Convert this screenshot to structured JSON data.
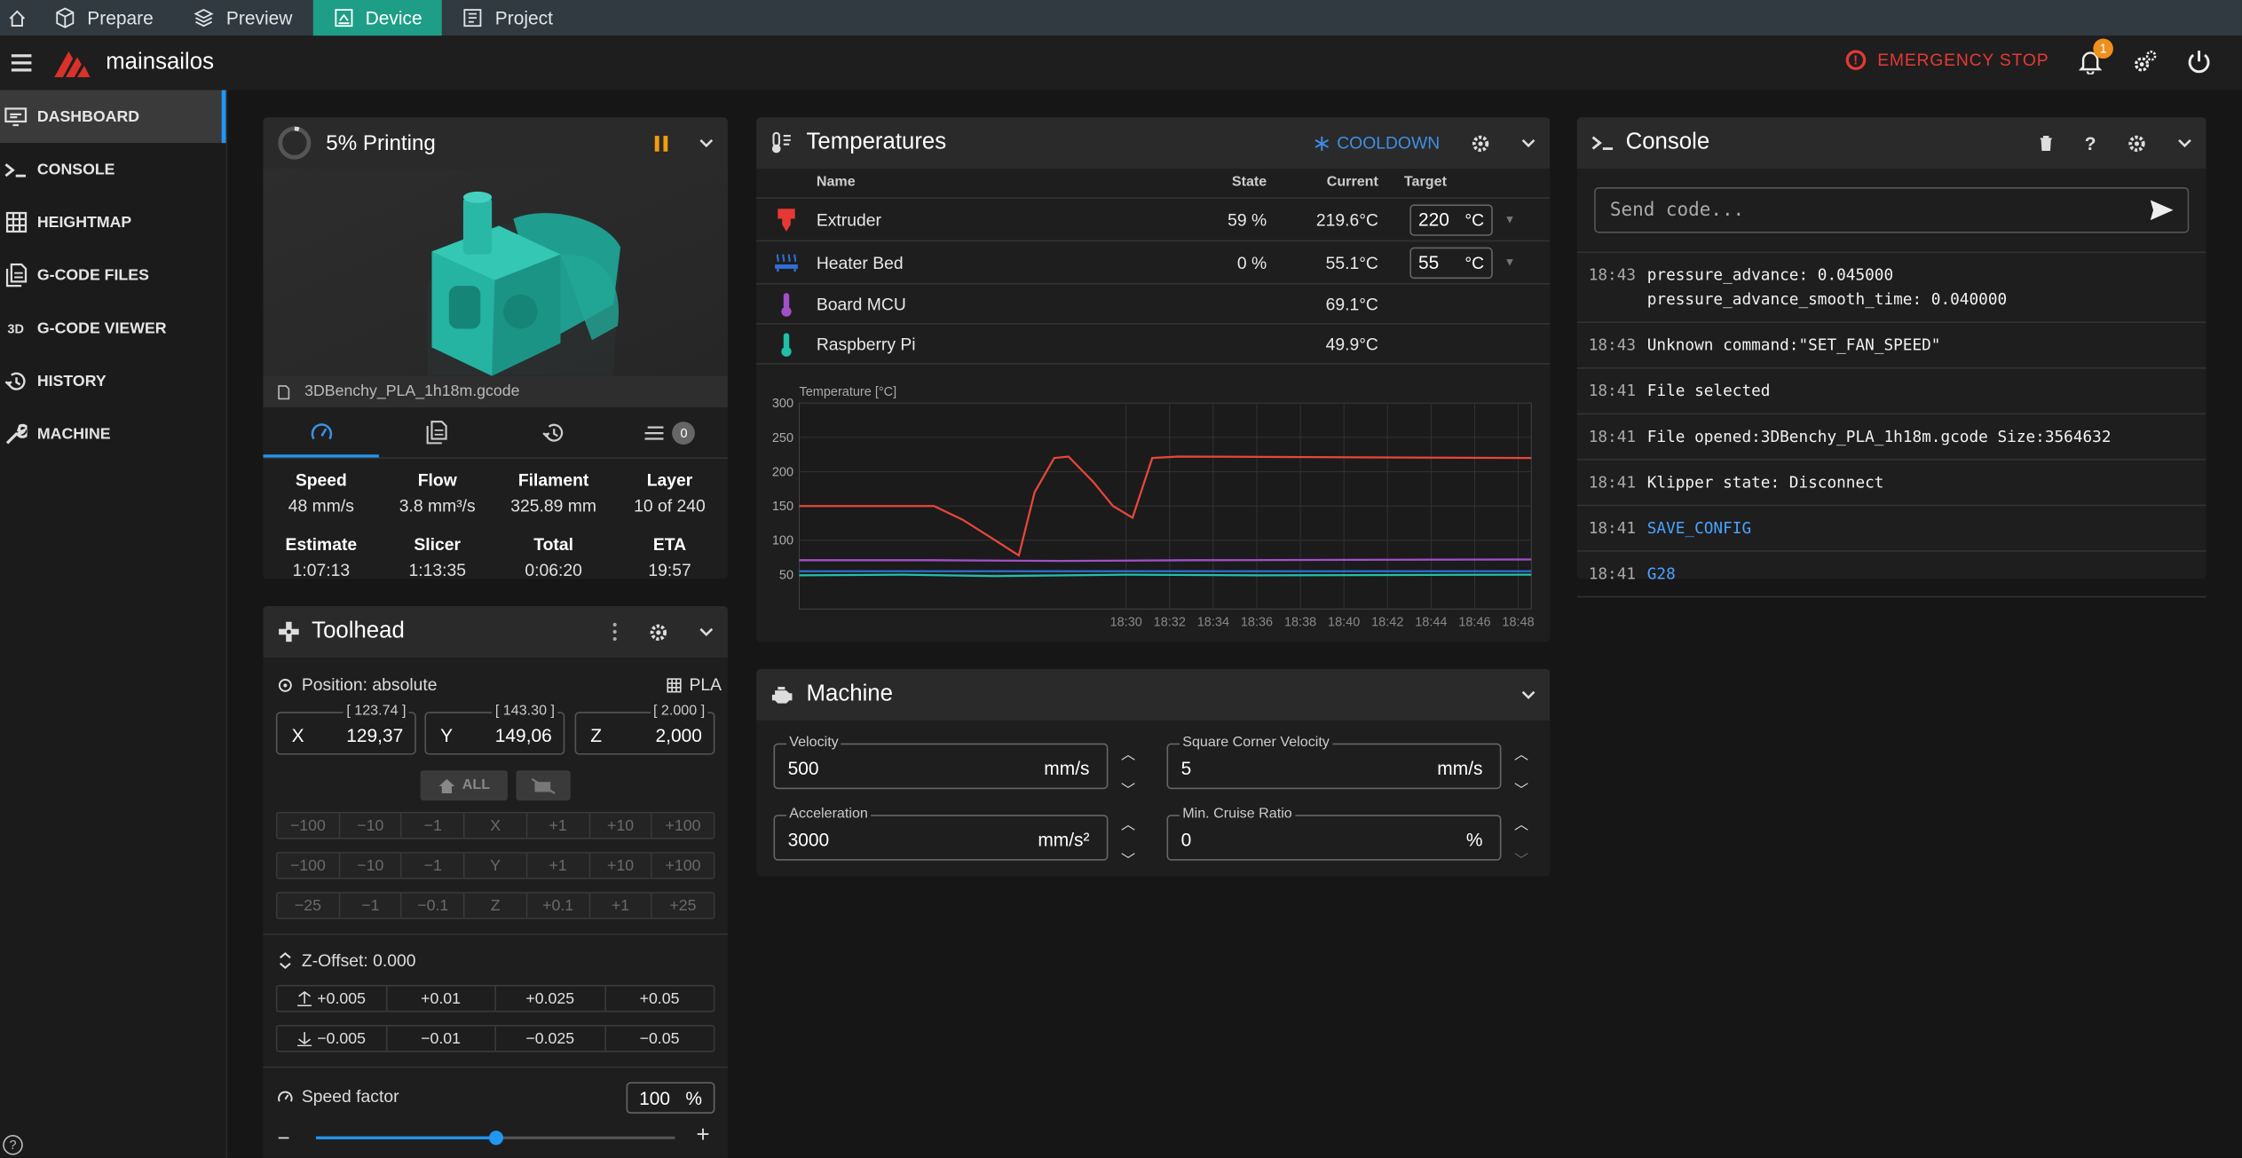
{
  "topbar": {
    "tabs": [
      {
        "label": "Prepare",
        "icon": "cube-icon"
      },
      {
        "label": "Preview",
        "icon": "layers-icon"
      },
      {
        "label": "Device",
        "icon": "device-icon",
        "active": true
      },
      {
        "label": "Project",
        "icon": "project-icon"
      }
    ]
  },
  "appbar": {
    "brand": "mainsailos",
    "emergency_stop": "EMERGENCY STOP",
    "notification_count": "1"
  },
  "sidebar": {
    "items": [
      {
        "label": "DASHBOARD",
        "active": true
      },
      {
        "label": "CONSOLE"
      },
      {
        "label": "HEIGHTMAP"
      },
      {
        "label": "G-CODE FILES"
      },
      {
        "label": "G-CODE VIEWER"
      },
      {
        "label": "HISTORY"
      },
      {
        "label": "MACHINE"
      }
    ],
    "help": "?"
  },
  "status": {
    "title": "5% Printing",
    "progress": 0.05,
    "filename": "3DBenchy_PLA_1h18m.gcode",
    "queue_count": "0",
    "stats_row1": [
      {
        "k": "Speed",
        "v": "48 mm/s"
      },
      {
        "k": "Flow",
        "v": "3.8 mm³/s"
      },
      {
        "k": "Filament",
        "v": "325.89 mm"
      },
      {
        "k": "Layer",
        "v": "10 of 240"
      }
    ],
    "stats_row2": [
      {
        "k": "Estimate",
        "v": "1:07:13"
      },
      {
        "k": "Slicer",
        "v": "1:13:35"
      },
      {
        "k": "Total",
        "v": "0:06:20"
      },
      {
        "k": "ETA",
        "v": "19:57"
      }
    ]
  },
  "toolhead": {
    "title": "Toolhead",
    "position_mode": "Position: absolute",
    "filament": "PLA",
    "x": {
      "label": "X",
      "value": "129,37",
      "target": "[ 123.74 ]"
    },
    "y": {
      "label": "Y",
      "value": "149,06",
      "target": "[ 143.30 ]"
    },
    "z": {
      "label": "Z",
      "value": "2,000",
      "target": "[ 2.000 ]"
    },
    "home_all": "ALL",
    "x_row": [
      "−100",
      "−10",
      "−1",
      "X",
      "+1",
      "+10",
      "+100"
    ],
    "y_row": [
      "−100",
      "−10",
      "−1",
      "Y",
      "+1",
      "+10",
      "+100"
    ],
    "z_row": [
      "−25",
      "−1",
      "−0.1",
      "Z",
      "+0.1",
      "+1",
      "+25"
    ],
    "zoffset_label": "Z-Offset: 0.000",
    "zoffset_up": [
      "+0.005",
      "+0.01",
      "+0.025",
      "+0.05"
    ],
    "zoffset_down": [
      "−0.005",
      "−0.01",
      "−0.025",
      "−0.05"
    ],
    "speed_factor_label": "Speed factor",
    "speed_factor_value": "100",
    "speed_factor_unit": "%",
    "speed_slider_fraction": 0.5
  },
  "temperatures": {
    "title": "Temperatures",
    "cooldown": "COOLDOWN",
    "headers": {
      "name": "Name",
      "state": "State",
      "current": "Current",
      "target": "Target"
    },
    "rows": [
      {
        "name": "Extruder",
        "state": "59 %",
        "current": "219.6°C",
        "target": "220",
        "unit": "°C",
        "icon": "extruder-icon",
        "color": "#e53935"
      },
      {
        "name": "Heater Bed",
        "state": "0 %",
        "current": "55.1°C",
        "target": "55",
        "unit": "°C",
        "icon": "heater-bed-icon",
        "color": "#2f6fd6"
      },
      {
        "name": "Board MCU",
        "state": "",
        "current": "69.1°C",
        "target": "",
        "unit": "",
        "icon": "thermometer-icon",
        "color": "#a24fc9"
      },
      {
        "name": "Raspberry Pi",
        "state": "",
        "current": "49.9°C",
        "target": "",
        "unit": "",
        "icon": "thermometer-icon",
        "color": "#20c0a8"
      }
    ]
  },
  "chart_data": {
    "type": "line",
    "title": "",
    "ylabel": "Temperature [°C]",
    "xlabel": "",
    "x_ticks": [
      "18:30",
      "18:32",
      "18:34",
      "18:36",
      "18:38",
      "18:40",
      "18:42",
      "18:44",
      "18:46",
      "18:48"
    ],
    "y_ticks": [
      50,
      100,
      150,
      200,
      250,
      300
    ],
    "xlim": [
      18.25,
      18.81
    ],
    "ylim": [
      0,
      300
    ],
    "grid": true,
    "x_unit": "hour.decimal (18.50 = 18:30)",
    "series": [
      {
        "color": "#e8473a",
        "points": [
          [
            18.25,
            150
          ],
          [
            18.3,
            150
          ],
          [
            18.353,
            150
          ],
          [
            18.375,
            130
          ],
          [
            18.4,
            100
          ],
          [
            18.418,
            78
          ],
          [
            18.43,
            170
          ],
          [
            18.445,
            220
          ],
          [
            18.456,
            222
          ],
          [
            18.475,
            185
          ],
          [
            18.49,
            150
          ],
          [
            18.505,
            133
          ],
          [
            18.52,
            220
          ],
          [
            18.54,
            222
          ],
          [
            18.81,
            220
          ]
        ]
      },
      {
        "color": "#a24fc9",
        "points": [
          [
            18.25,
            71
          ],
          [
            18.35,
            71
          ],
          [
            18.45,
            70
          ],
          [
            18.55,
            71
          ],
          [
            18.81,
            72
          ]
        ]
      },
      {
        "color": "#2f6fd6",
        "points": [
          [
            18.25,
            55
          ],
          [
            18.4,
            55
          ],
          [
            18.55,
            55
          ],
          [
            18.81,
            55
          ]
        ]
      },
      {
        "color": "#20c0a8",
        "points": [
          [
            18.25,
            49
          ],
          [
            18.33,
            50
          ],
          [
            18.4,
            48
          ],
          [
            18.5,
            50
          ],
          [
            18.6,
            49
          ],
          [
            18.81,
            50
          ]
        ]
      }
    ],
    "power_bands": [
      [
        18.25,
        18.353
      ],
      [
        18.428,
        18.465
      ],
      [
        18.525,
        18.81
      ]
    ]
  },
  "machine": {
    "title": "Machine",
    "velocity": {
      "label": "Velocity",
      "value": "500",
      "unit": "mm/s"
    },
    "scv": {
      "label": "Square Corner Velocity",
      "value": "5",
      "unit": "mm/s"
    },
    "acceleration": {
      "label": "Acceleration",
      "value": "3000",
      "unit": "mm/s²"
    },
    "cruise": {
      "label": "Min. Cruise Ratio",
      "value": "0",
      "unit": "%"
    }
  },
  "console": {
    "title": "Console",
    "placeholder": "Send code...",
    "help": "?",
    "entries": [
      {
        "time": "18:43",
        "msg": "pressure_advance: 0.045000\npressure_advance_smooth_time: 0.040000",
        "link": false
      },
      {
        "time": "18:43",
        "msg": "Unknown command:\"SET_FAN_SPEED\"",
        "link": false
      },
      {
        "time": "18:41",
        "msg": "File selected",
        "link": false
      },
      {
        "time": "18:41",
        "msg": "File opened:3DBenchy_PLA_1h18m.gcode Size:3564632",
        "link": false
      },
      {
        "time": "18:41",
        "msg": "Klipper state: Disconnect",
        "link": false
      },
      {
        "time": "18:41",
        "msg": "SAVE_CONFIG",
        "link": true
      },
      {
        "time": "18:41",
        "msg": "G28",
        "link": true
      }
    ]
  }
}
